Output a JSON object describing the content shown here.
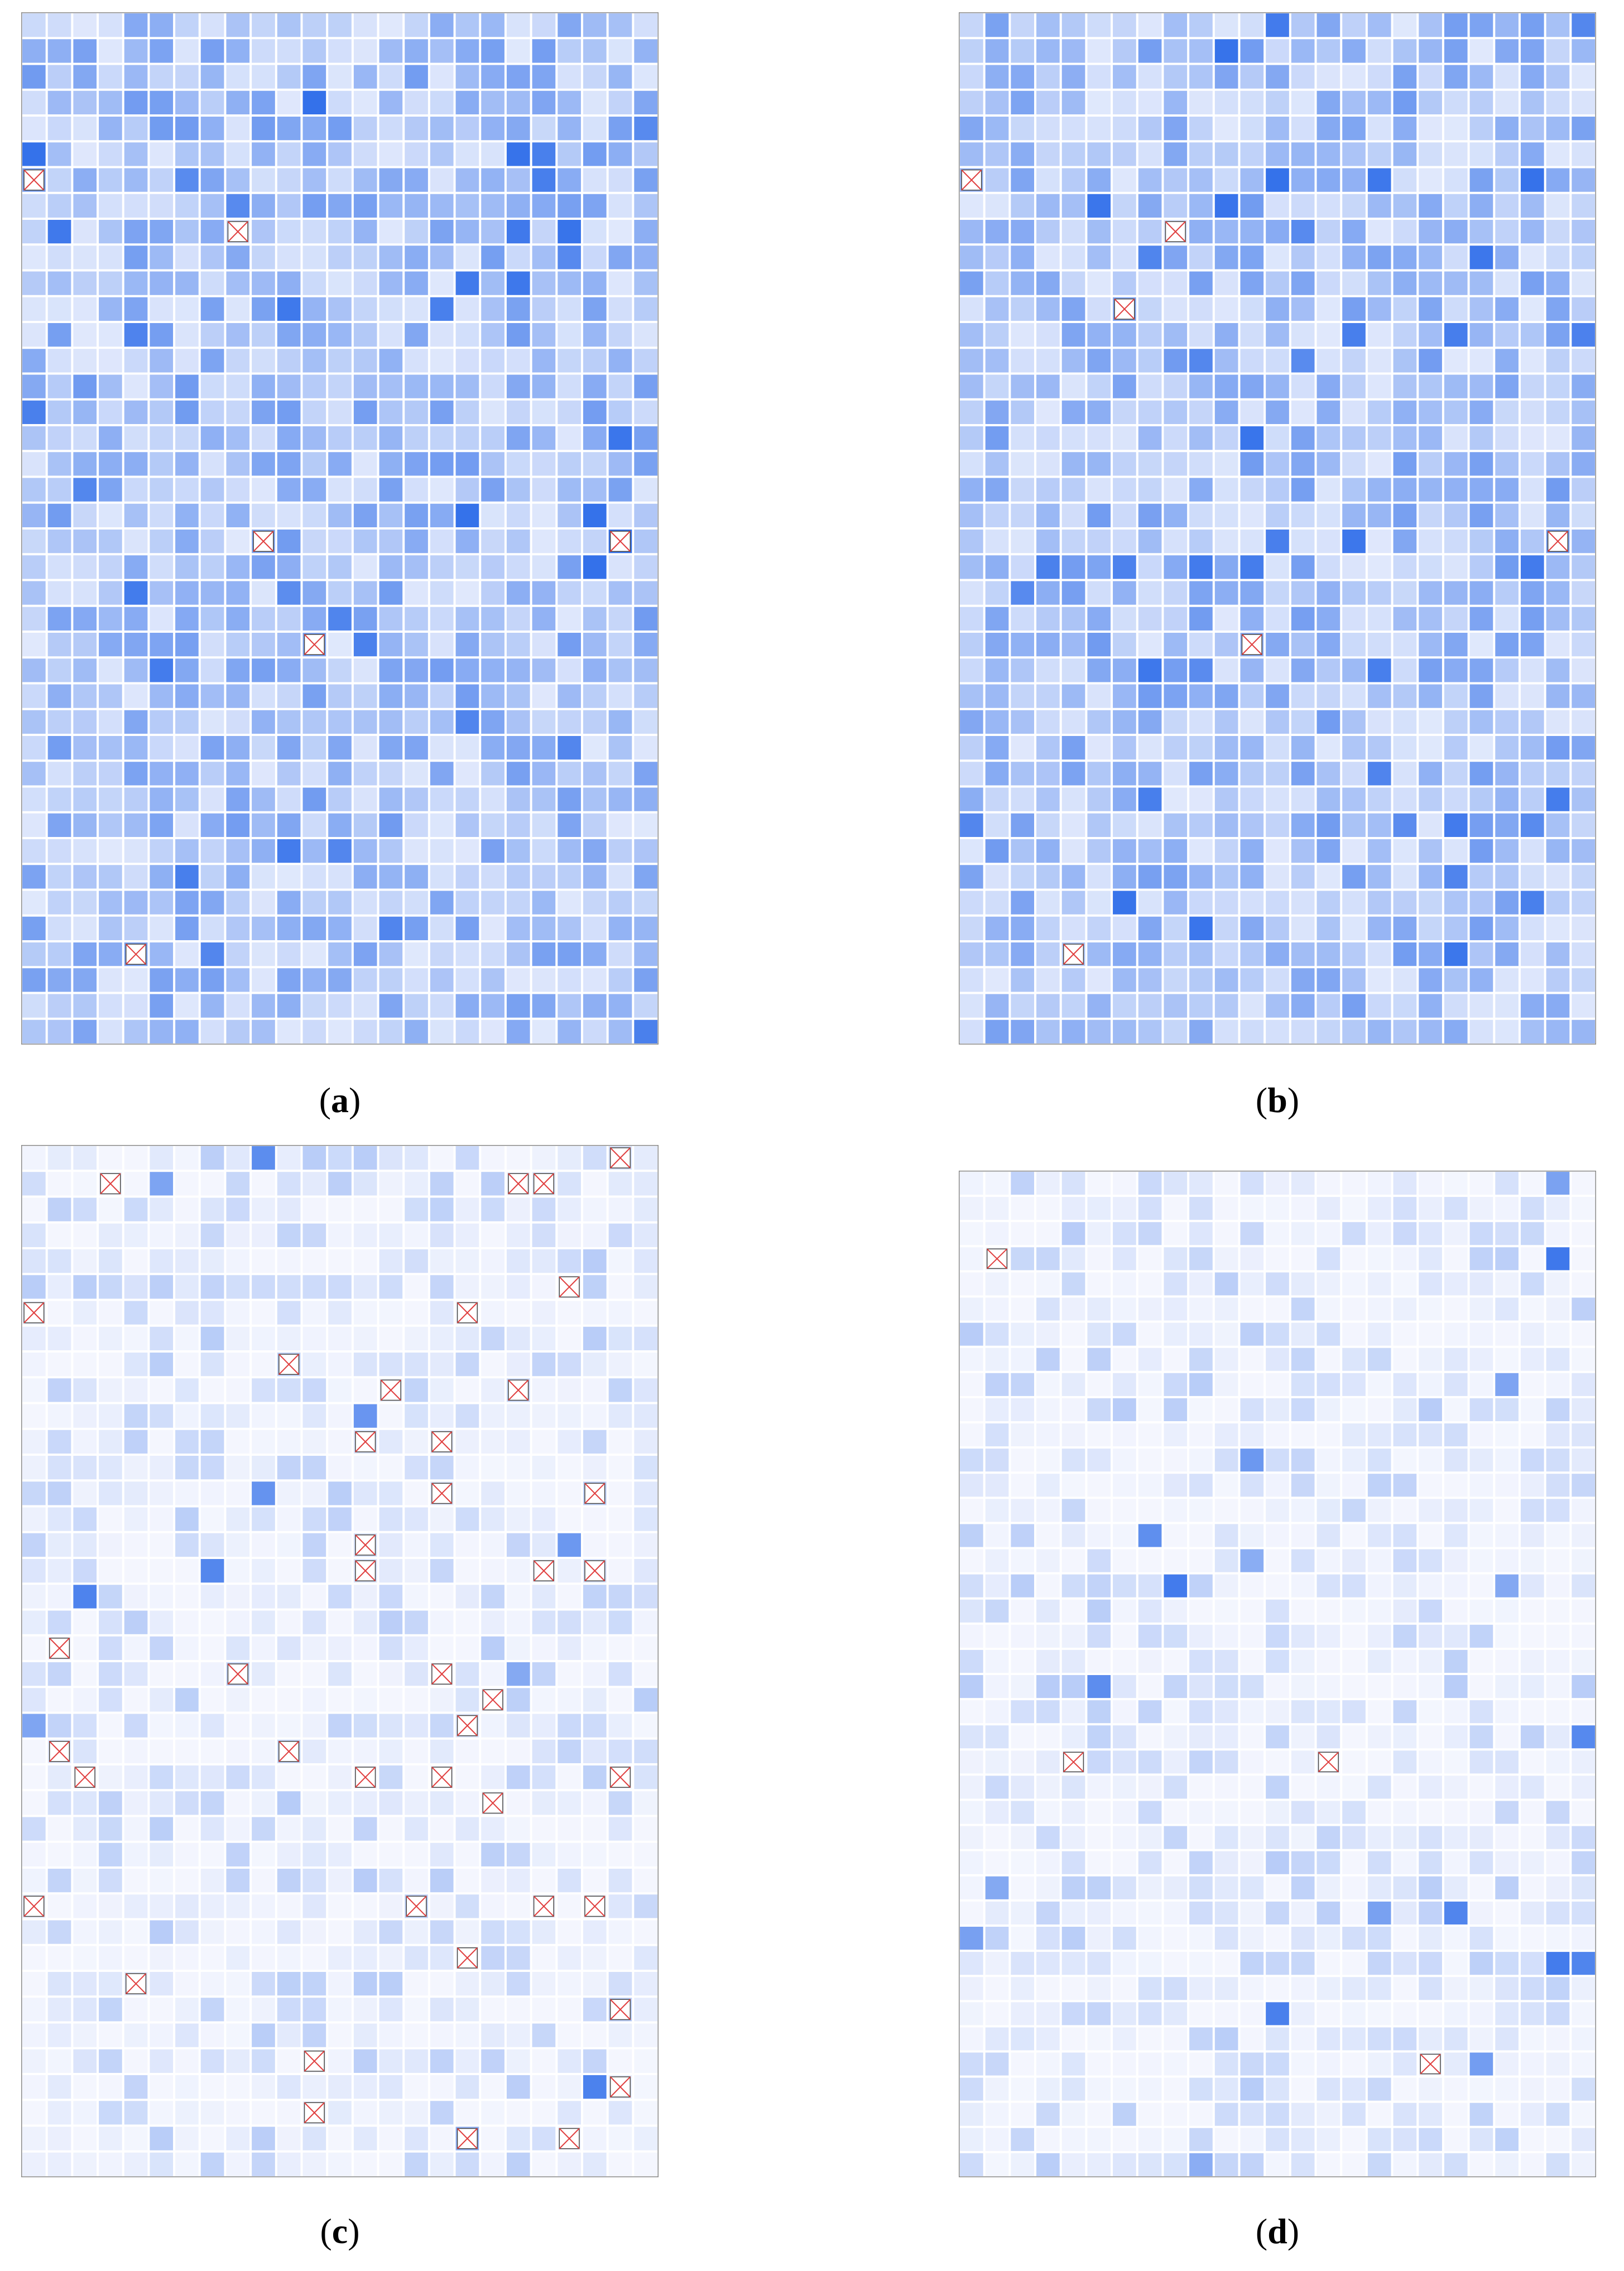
{
  "figure": {
    "grid": {
      "rows": 40,
      "cols": 25
    },
    "palette": {
      "low": "#f4f6fe",
      "high": "#2a6ae9",
      "cell_border": "#ffffff",
      "frame": "#888888",
      "marker": "#e04040"
    },
    "panels": [
      {
        "id": "a",
        "caption_prefix": "(",
        "caption_letter": "a",
        "caption_suffix": ")",
        "intensity_level": "high",
        "blocked_cells": [
          [
            6,
            0
          ],
          [
            8,
            8
          ],
          [
            20,
            9
          ],
          [
            20,
            23
          ],
          [
            24,
            11
          ],
          [
            36,
            4
          ]
        ]
      },
      {
        "id": "b",
        "caption_prefix": "(",
        "caption_letter": "b",
        "caption_suffix": ")",
        "intensity_level": "high",
        "blocked_cells": [
          [
            6,
            0
          ],
          [
            8,
            8
          ],
          [
            11,
            6
          ],
          [
            20,
            23
          ],
          [
            24,
            11
          ],
          [
            36,
            4
          ]
        ]
      },
      {
        "id": "c",
        "caption_prefix": "(",
        "caption_letter": "c",
        "caption_suffix": ")",
        "intensity_level": "low",
        "blocked_cells": [
          [
            0,
            23
          ],
          [
            1,
            3
          ],
          [
            1,
            19
          ],
          [
            1,
            20
          ],
          [
            5,
            21
          ],
          [
            6,
            0
          ],
          [
            6,
            17
          ],
          [
            8,
            10
          ],
          [
            9,
            14
          ],
          [
            9,
            19
          ],
          [
            11,
            13
          ],
          [
            11,
            16
          ],
          [
            13,
            16
          ],
          [
            13,
            22
          ],
          [
            15,
            13
          ],
          [
            16,
            13
          ],
          [
            16,
            20
          ],
          [
            16,
            22
          ],
          [
            19,
            1
          ],
          [
            20,
            8
          ],
          [
            20,
            16
          ],
          [
            21,
            18
          ],
          [
            22,
            17
          ],
          [
            23,
            1
          ],
          [
            23,
            10
          ],
          [
            24,
            2
          ],
          [
            24,
            13
          ],
          [
            24,
            16
          ],
          [
            24,
            23
          ],
          [
            25,
            18
          ],
          [
            29,
            0
          ],
          [
            29,
            15
          ],
          [
            29,
            20
          ],
          [
            29,
            22
          ],
          [
            31,
            17
          ],
          [
            32,
            4
          ],
          [
            33,
            23
          ],
          [
            35,
            11
          ],
          [
            36,
            23
          ],
          [
            37,
            11
          ],
          [
            38,
            17
          ],
          [
            38,
            21
          ]
        ]
      },
      {
        "id": "d",
        "caption_prefix": "(",
        "caption_letter": "d",
        "caption_suffix": ")",
        "intensity_level": "low",
        "blocked_cells": [
          [
            3,
            1
          ],
          [
            23,
            4
          ],
          [
            23,
            14
          ],
          [
            35,
            18
          ]
        ]
      }
    ]
  }
}
